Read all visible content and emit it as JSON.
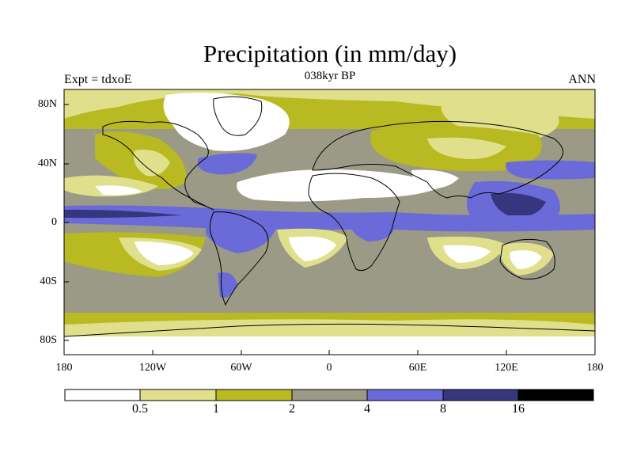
{
  "header": {
    "title": "Precipitation (in mm/day)",
    "left": "Expt = tdxoE",
    "center": "038kyr BP",
    "right": "ANN"
  },
  "axes": {
    "y_ticks": [
      "80N",
      "40N",
      "0",
      "40S",
      "80S"
    ],
    "x_ticks": [
      "180",
      "120W",
      "60W",
      "0",
      "60E",
      "120E",
      "180"
    ]
  },
  "colorbar": {
    "labels": [
      "0.5",
      "1",
      "2",
      "4",
      "8",
      "16"
    ],
    "colors": [
      "#ffffff",
      "#e0e08c",
      "#b9b922",
      "#9a9a87",
      "#6a6ad8",
      "#36367f",
      "#000000"
    ]
  },
  "palette": {
    "white": "#ffffff",
    "pale": "#e0e08c",
    "olive": "#b9b922",
    "gray": "#9a9a87",
    "blue": "#6a6ad8",
    "navy": "#36367f"
  }
}
